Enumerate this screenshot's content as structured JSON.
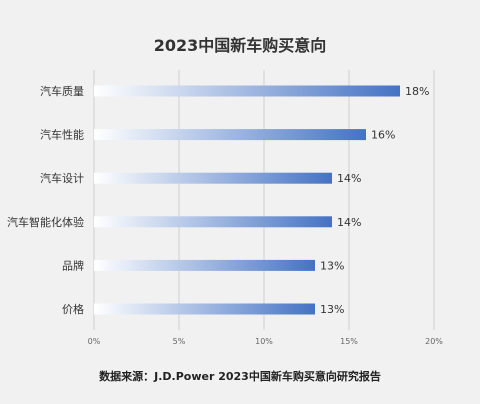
{
  "chart_data": {
    "type": "bar",
    "orientation": "horizontal",
    "title": "2023中国新车购买意向",
    "categories": [
      "汽车质量",
      "汽车性能",
      "汽车设计",
      "汽车智能化体验",
      "品牌",
      "价格"
    ],
    "values": [
      18,
      16,
      14,
      14,
      13,
      13
    ],
    "value_unit": "%",
    "data_labels": [
      "18%",
      "16%",
      "14%",
      "14%",
      "13%",
      "13%"
    ],
    "xlim": [
      0,
      20
    ],
    "xticks": [
      0,
      5,
      10,
      15,
      20
    ],
    "xtick_labels": [
      "0%",
      "5%",
      "10%",
      "15%",
      "20%"
    ],
    "grid": "vertical",
    "legend": "none",
    "colors": {
      "bar_start": "#ffffff",
      "bar_end": "#4472c4",
      "gridline": "#cfcfcf",
      "background": "#f1f1f1",
      "text": "#333333"
    }
  },
  "source_note": "数据来源：J.D.Power 2023中国新车购买意向研究报告"
}
